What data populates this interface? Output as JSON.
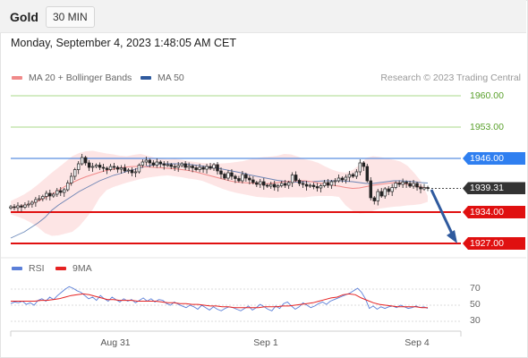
{
  "header": {
    "title": "Gold",
    "timeframe_button": "30 MIN"
  },
  "timestamp": "Monday, September 4, 2023 1:48:05 AM CET",
  "legend": {
    "ma20": {
      "label": "MA 20 + Bollinger Bands",
      "color": "#f08a8a"
    },
    "ma50": {
      "label": "MA 50",
      "color": "#2f5a9e"
    },
    "rsi": {
      "label": "RSI",
      "color": "#5b7fd8"
    },
    "ma9": {
      "label": "9MA",
      "color": "#e52222"
    }
  },
  "credit": "Research © 2023 Trading Central",
  "price_levels": [
    {
      "label": "1960.00",
      "value": 1960.0,
      "kind": "target",
      "color": "#5aa02c"
    },
    {
      "label": "1953.00",
      "value": 1953.0,
      "kind": "target",
      "color": "#5aa02c"
    },
    {
      "label": "1946.00",
      "value": 1946.0,
      "kind": "pivot",
      "color": "#2f7ff0"
    },
    {
      "label": "1939.31",
      "value": 1939.31,
      "kind": "last",
      "color": "#333333"
    },
    {
      "label": "1934.00",
      "value": 1934.0,
      "kind": "support",
      "color": "#e01010"
    },
    {
      "label": "1927.00",
      "value": 1927.0,
      "kind": "support",
      "color": "#e01010"
    }
  ],
  "rsi_axis": [
    "70",
    "50",
    "30"
  ],
  "x_labels": [
    "Aug 31",
    "Sep 1",
    "Sep 4"
  ],
  "chart_data": {
    "type": "candlestick",
    "instrument": "Gold",
    "timeframe": "30 MIN",
    "ylim": [
      1924,
      1965
    ],
    "price_close": [
      1935.2,
      1935.0,
      1935.4,
      1935.1,
      1935.6,
      1935.8,
      1936.2,
      1936.8,
      1937.0,
      1937.5,
      1938.2,
      1937.6,
      1938.0,
      1938.8,
      1938.4,
      1939.0,
      1940.5,
      1942.0,
      1943.5,
      1944.8,
      1946.2,
      1945.0,
      1944.0,
      1944.2,
      1944.5,
      1944.0,
      1943.8,
      1943.5,
      1944.2,
      1944.0,
      1943.6,
      1943.9,
      1943.2,
      1943.4,
      1942.8,
      1943.0,
      1944.5,
      1945.2,
      1945.6,
      1945.0,
      1944.5,
      1945.2,
      1944.8,
      1944.5,
      1944.6,
      1944.2,
      1944.0,
      1944.4,
      1944.8,
      1944.0,
      1944.3,
      1943.9,
      1943.5,
      1944.0,
      1943.6,
      1944.2,
      1943.8,
      1944.6,
      1943.2,
      1942.5,
      1941.6,
      1942.8,
      1942.0,
      1941.5,
      1941.0,
      1942.4,
      1941.6,
      1941.2,
      1940.6,
      1940.2,
      1940.8,
      1940.0,
      1939.8,
      1940.2,
      1939.6,
      1939.9,
      1940.4,
      1940.0,
      1940.6,
      1942.3,
      1941.1,
      1940.4,
      1940.2,
      1939.8,
      1940.0,
      1939.7,
      1939.4,
      1939.9,
      1940.6,
      1940.0,
      1940.8,
      1941.0,
      1941.6,
      1941.2,
      1941.8,
      1942.4,
      1942.0,
      1943.0,
      1945.0,
      1944.2,
      1941.0,
      1937.2,
      1936.5,
      1938.6,
      1937.6,
      1939.2,
      1938.6,
      1939.5,
      1940.5,
      1940.2,
      1940.7,
      1940.4,
      1939.8,
      1940.4,
      1939.6,
      1939.2,
      1939.5,
      1939.31
    ],
    "bollinger_upper": [
      1936.5,
      1937.2,
      1938.0,
      1939.0,
      1940.2,
      1941.5,
      1942.8,
      1944.0,
      1945.2,
      1946.5,
      1947.2,
      1947.6,
      1947.7,
      1947.4,
      1947.1,
      1946.9,
      1946.6,
      1946.5,
      1946.8,
      1947.0,
      1946.6,
      1946.2,
      1945.9,
      1945.8,
      1945.9,
      1945.7,
      1945.4,
      1945.2,
      1945.0,
      1944.9,
      1944.8,
      1944.9,
      1945.0,
      1945.2,
      1945.4,
      1945.8,
      1946.1,
      1946.3,
      1946.4,
      1946.6,
      1947.0,
      1946.9,
      1946.4,
      1945.8,
      1945.5,
      1945.0,
      1944.2,
      1943.5,
      1943.0,
      1942.8,
      1943.4,
      1944.5,
      1946.1,
      1946.5,
      1946.3,
      1946.0,
      1945.7,
      1945.3,
      1944.4,
      1942.8,
      1940.9,
      1937.6
    ],
    "bollinger_lower": [
      1933.5,
      1933.0,
      1932.4,
      1931.6,
      1930.6,
      1929.3,
      1928.7,
      1928.8,
      1929.2,
      1929.6,
      1930.8,
      1932.6,
      1934.6,
      1937.2,
      1938.9,
      1939.6,
      1940.1,
      1940.6,
      1941.0,
      1941.4,
      1941.7,
      1941.9,
      1942.1,
      1942.2,
      1942.0,
      1941.8,
      1941.5,
      1941.3,
      1941.0,
      1940.4,
      1939.8,
      1939.2,
      1938.7,
      1938.3,
      1938.0,
      1937.7,
      1937.4,
      1937.3,
      1937.2,
      1937.2,
      1937.3,
      1937.3,
      1937.3,
      1937.3,
      1937.5,
      1937.6,
      1937.6,
      1937.6,
      1937.4,
      1935.5,
      1934.3,
      1933.7,
      1933.8,
      1934.3,
      1934.8,
      1935.0,
      1935.2,
      1935.3,
      1935.5,
      1935.6,
      1935.8,
      1936.3
    ],
    "ma20": [
      1935.0,
      1935.2,
      1935.5,
      1935.9,
      1936.5,
      1937.2,
      1938.0,
      1938.9,
      1939.8,
      1940.6,
      1941.3,
      1941.9,
      1942.4,
      1942.9,
      1943.3,
      1943.6,
      1943.9,
      1944.1,
      1944.2,
      1944.2,
      1944.1,
      1944.0,
      1943.9,
      1943.8,
      1943.7,
      1943.5,
      1943.3,
      1943.0,
      1942.6,
      1942.2,
      1941.8,
      1941.4,
      1941.0,
      1940.7,
      1940.6,
      1940.5,
      1940.4,
      1940.3,
      1940.4,
      1940.6,
      1940.8,
      1940.9,
      1941.0,
      1941.0,
      1940.8,
      1940.5,
      1940.3,
      1940.0,
      1939.8,
      1939.5,
      1939.3,
      1939.4,
      1939.7,
      1940.0,
      1940.2,
      1940.4,
      1940.6,
      1940.5,
      1940.2,
      1939.9,
      1939.6,
      1939.4
    ],
    "ma50": [
      1928.2,
      1928.9,
      1929.6,
      1930.6,
      1931.6,
      1932.8,
      1934.4,
      1935.6,
      1936.6,
      1937.6,
      1938.6,
      1939.4,
      1940.2,
      1941.0,
      1941.6,
      1942.2,
      1942.6,
      1943.1,
      1943.5,
      1943.9,
      1944.3,
      1944.6,
      1944.8,
      1944.8,
      1944.8,
      1944.8,
      1944.7,
      1944.5,
      1944.3,
      1944.1,
      1943.9,
      1943.6,
      1943.3,
      1943.0,
      1942.7,
      1942.3,
      1942.0,
      1941.7,
      1941.4,
      1941.1,
      1940.9,
      1940.8,
      1940.7,
      1940.8,
      1940.8,
      1940.9,
      1941.0,
      1941.0,
      1941.0,
      1940.9,
      1940.8,
      1940.6,
      1940.4,
      1940.4,
      1940.6,
      1940.8,
      1941.0,
      1941.0,
      1940.9,
      1940.8,
      1940.6,
      1940.5
    ],
    "rsi": [
      52,
      54,
      53,
      55,
      51,
      53,
      50,
      56,
      58,
      55,
      60,
      57,
      62,
      66,
      70,
      73,
      71,
      68,
      66,
      62,
      58,
      60,
      56,
      62,
      58,
      55,
      60,
      57,
      54,
      58,
      55,
      57,
      53,
      56,
      59,
      55,
      58,
      54,
      57,
      56,
      52,
      50,
      54,
      51,
      49,
      47,
      50,
      48,
      45,
      50,
      47,
      44,
      48,
      45,
      43,
      46,
      48,
      47,
      45,
      43,
      46,
      49,
      44,
      47,
      51,
      48,
      45,
      43,
      49,
      46,
      52,
      54,
      49,
      45,
      48,
      53,
      50,
      47,
      49,
      52,
      54,
      51,
      55,
      57,
      59,
      61,
      63,
      65,
      68,
      71,
      66,
      58,
      46,
      49,
      45,
      48,
      46,
      48,
      49,
      47,
      50,
      48,
      46,
      47,
      49,
      47,
      48,
      46
    ],
    "rsi_ma9": [
      55,
      55,
      55,
      55,
      55,
      56,
      56,
      57,
      58,
      60,
      62,
      63,
      64,
      63,
      61,
      59,
      57,
      57,
      56,
      56,
      56,
      55,
      55,
      55,
      55,
      54,
      53,
      53,
      52,
      52,
      51,
      51,
      50,
      49,
      49,
      48,
      48,
      47,
      47,
      47,
      47,
      47,
      48,
      48,
      48,
      49,
      49,
      50,
      51,
      52,
      53,
      55,
      57,
      59,
      60,
      63,
      64,
      63,
      59,
      56,
      53,
      51,
      50,
      49,
      48,
      48,
      48,
      48,
      47,
      47
    ],
    "forecast_arrow": {
      "from_value": 1939.0,
      "to_value": 1927.0
    }
  }
}
